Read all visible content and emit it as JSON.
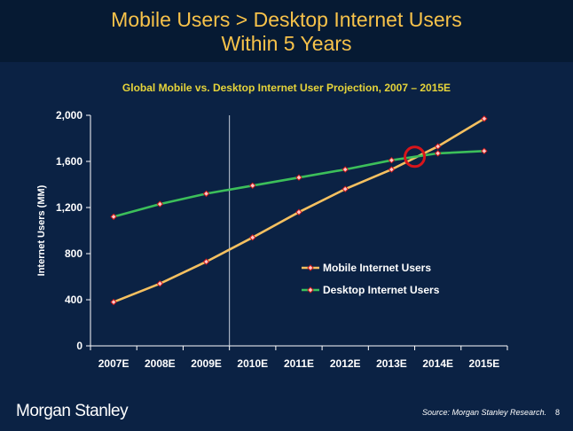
{
  "slide": {
    "title_line1": "Mobile Users > Desktop Internet Users",
    "title_line2": "Within 5 Years",
    "logo_text": "Morgan Stanley",
    "source": "Source: Morgan Stanley Research.",
    "page_number": "8"
  },
  "chart_data": {
    "type": "line",
    "title": "Global Mobile vs. Desktop Internet User Projection, 2007 – 2015E",
    "ylabel": "Internet Users (MM)",
    "xlabel": "",
    "categories": [
      "2007E",
      "2008E",
      "2009E",
      "2010E",
      "2011E",
      "2012E",
      "2013E",
      "2014E",
      "2015E"
    ],
    "y_ticks": [
      "0",
      "400",
      "800",
      "1,200",
      "1,600",
      "2,000"
    ],
    "ylim": [
      0,
      2000
    ],
    "grid": false,
    "legend_position": "right",
    "series": [
      {
        "name": "Mobile Internet Users",
        "color": "#f5c060",
        "values": [
          380,
          540,
          730,
          940,
          1160,
          1360,
          1530,
          1730,
          1970
        ]
      },
      {
        "name": "Desktop Internet Users",
        "color": "#3cbf5a",
        "values": [
          1120,
          1230,
          1320,
          1390,
          1460,
          1530,
          1610,
          1670,
          1690
        ]
      }
    ],
    "annotations": [
      {
        "type": "crossover-circle",
        "color": "#d8151b",
        "x": "2013E-2014E",
        "y": 1640
      },
      {
        "type": "vertical-divider",
        "x": "2009E-2010E"
      }
    ]
  }
}
